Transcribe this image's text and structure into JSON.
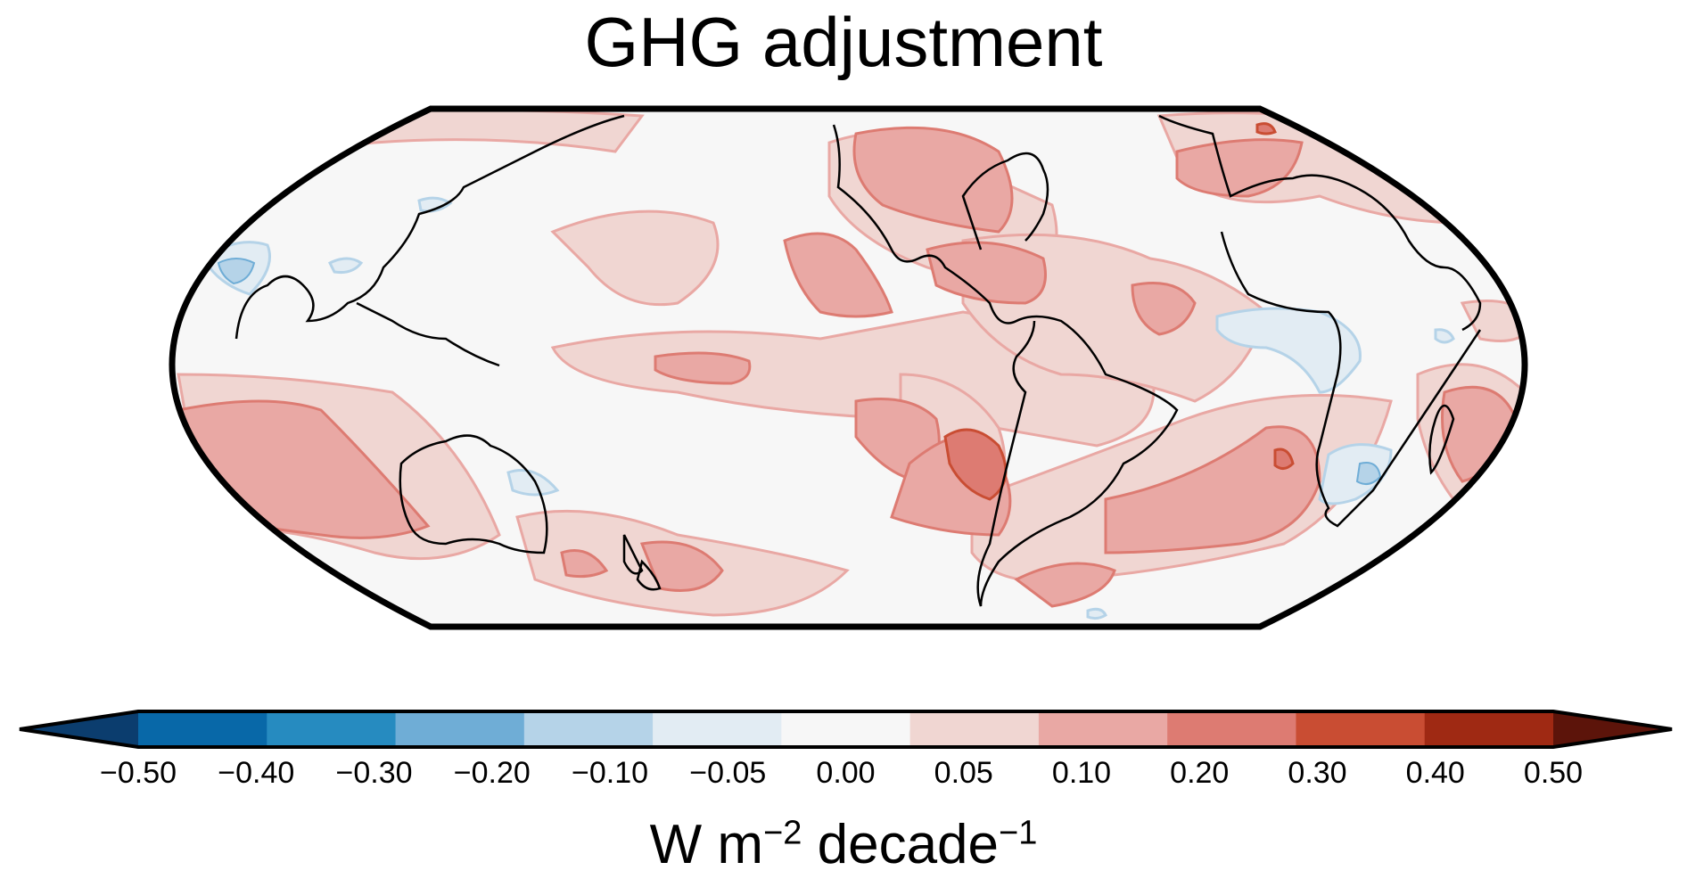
{
  "title": "GHG adjustment",
  "colorbar": {
    "ticks": [
      "−0.50",
      "−0.40",
      "−0.30",
      "−0.20",
      "−0.10",
      "−0.05",
      "0.00",
      "0.05",
      "0.10",
      "0.20",
      "0.30",
      "0.40",
      "0.50"
    ],
    "colors": [
      "#0b3d6e",
      "#0868a8",
      "#268bc0",
      "#6fadd6",
      "#b5d3e8",
      "#e2ecf3",
      "#f7f7f7",
      "#f0d6d2",
      "#e9a8a4",
      "#dd7b72",
      "#c94d33",
      "#9f2913",
      "#5c140a"
    ],
    "unit_base": "W m",
    "unit_exp1": "−2",
    "unit_mid": " decade",
    "unit_exp2": "−1"
  },
  "colors": {
    "background": "#f7f7f7",
    "pos_light": "#f0d6d2",
    "pos_mid": "#e9a8a4",
    "pos_strong": "#dd7b72",
    "neg_light": "#e2ecf3",
    "neg_mid": "#b5d3e8"
  }
}
